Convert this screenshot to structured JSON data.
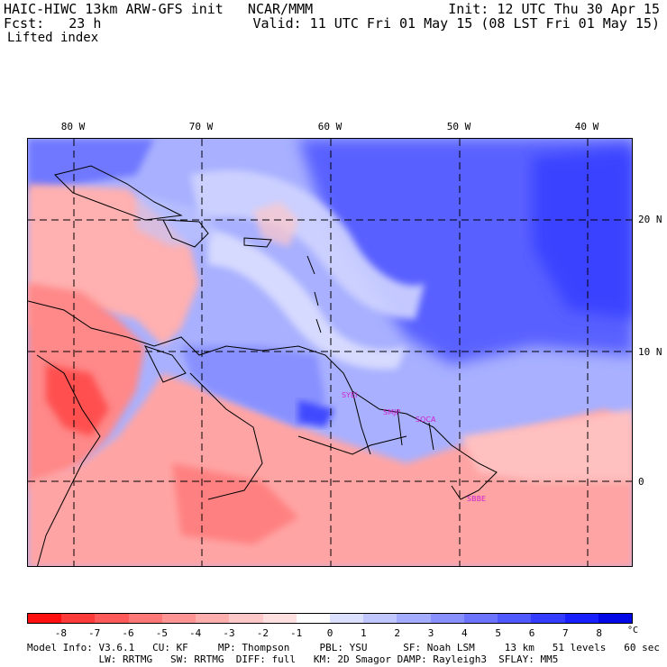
{
  "header": {
    "title_left": "HAIC-HIWC 13km ARW-GFS init   NCAR/MMM",
    "fcst": "Fcst:   23 h",
    "field": "Lifted index",
    "init": "Init: 12 UTC Thu 30 Apr 15",
    "valid": "Valid: 11 UTC Fri 01 May 15 (08 LST Fri 01 May 15)"
  },
  "axes": {
    "lon_labels": [
      "80 W",
      "70 W",
      "60 W",
      "50 W",
      "40 W"
    ],
    "lat_labels": [
      "20 N",
      "10 N",
      "0"
    ]
  },
  "stations": [
    "SYEI",
    "SMJP",
    "SOCA",
    "SBBE"
  ],
  "colorbar": {
    "ticks": [
      "-8",
      "-7",
      "-6",
      "-5",
      "-4",
      "-3",
      "-2",
      "-1",
      "0",
      "1",
      "2",
      "3",
      "4",
      "5",
      "6",
      "7",
      "8"
    ],
    "unit": "°C",
    "colors": [
      "#ff1010",
      "#ff3a3a",
      "#ff5a5a",
      "#ff7878",
      "#ff9494",
      "#ffaeae",
      "#ffc8c8",
      "#ffe0e0",
      "#ffffff",
      "#dce0ff",
      "#c0c6ff",
      "#a4acff",
      "#8890ff",
      "#6c74ff",
      "#5058ff",
      "#343cff",
      "#1820ff",
      "#0008e8"
    ]
  },
  "model_info": {
    "line1": "Model Info: V3.6.1   CU: KF     MP: Thompson     PBL: YSU      SF: Noah LSM     13 km   51 levels   60 sec",
    "line2": "            LW: RRTMG   SW: RRTMG  DIFF: full   KM: 2D Smagor DAMP: Rayleigh3  SFLAY: MM5"
  }
}
